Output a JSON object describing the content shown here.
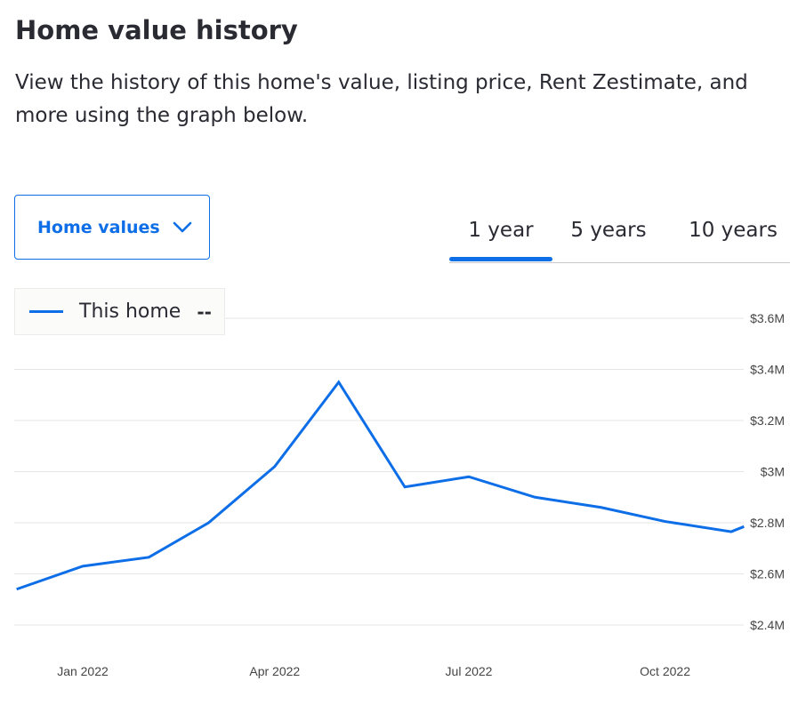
{
  "header": {
    "title": "Home value history",
    "description": "View the history of this home's value, listing price, Rent Zestimate, and more using the graph below."
  },
  "controls": {
    "dropdown_label": "Home values",
    "tabs": [
      {
        "label": "1 year",
        "selected": true
      },
      {
        "label": "5 years",
        "selected": false
      },
      {
        "label": "10 years",
        "selected": false
      }
    ]
  },
  "legend": {
    "label": "This home",
    "value": "--"
  },
  "colors": {
    "accent": "#0d6ee7",
    "text": "#2a2a33",
    "grid": "#e5e5e5"
  },
  "chart_data": {
    "type": "line",
    "title": "",
    "xlabel": "",
    "ylabel": "",
    "x_tick_labels": [
      "Jan 2022",
      "Apr 2022",
      "Jul 2022",
      "Oct 2022"
    ],
    "y_tick_labels": [
      "$3.6M",
      "$3.4M",
      "$3.2M",
      "$3M",
      "$2.8M",
      "$2.6M",
      "$2.4M"
    ],
    "y_tick_values": [
      3.6,
      3.4,
      3.2,
      3.0,
      2.8,
      2.6,
      2.4
    ],
    "ylim": [
      2.4,
      3.6
    ],
    "y_unit": "millions USD",
    "grid": true,
    "legend_position": "top-left",
    "series": [
      {
        "name": "This home",
        "color": "#0d6ee7",
        "points": [
          {
            "x": "2021-12-01",
            "y": 2.54
          },
          {
            "x": "2022-01-01",
            "y": 2.63
          },
          {
            "x": "2022-02-01",
            "y": 2.665
          },
          {
            "x": "2022-03-01",
            "y": 2.8
          },
          {
            "x": "2022-04-01",
            "y": 3.02
          },
          {
            "x": "2022-05-01",
            "y": 3.35
          },
          {
            "x": "2022-06-01",
            "y": 2.94
          },
          {
            "x": "2022-07-01",
            "y": 2.98
          },
          {
            "x": "2022-08-01",
            "y": 2.9
          },
          {
            "x": "2022-09-01",
            "y": 2.86
          },
          {
            "x": "2022-10-01",
            "y": 2.805
          },
          {
            "x": "2022-11-01",
            "y": 2.765
          },
          {
            "x": "2022-11-07",
            "y": 2.785
          }
        ]
      }
    ]
  }
}
